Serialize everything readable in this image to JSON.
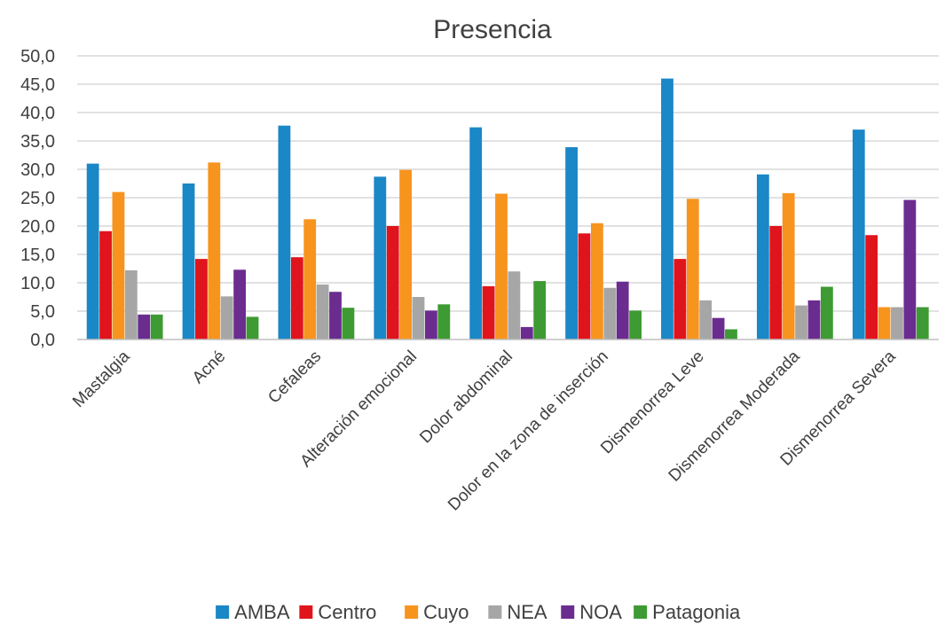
{
  "chart_data": {
    "type": "bar",
    "title": "Presencia",
    "xlabel": "",
    "ylabel": "",
    "ylim": [
      0,
      50
    ],
    "yticks": [
      "0,0",
      "5,0",
      "10,0",
      "15,0",
      "20,0",
      "25,0",
      "30,0",
      "35,0",
      "40,0",
      "45,0",
      "50,0"
    ],
    "grid": true,
    "legend_position": "bottom",
    "categories": [
      "Mastalgia",
      "Acné",
      "Cefaleas",
      "Alteración emocional",
      "Dolor abdominal",
      "Dolor en la zona de inserción",
      "Dismenorrea Leve",
      "Dismenorrea Moderada",
      "Dismenorrea Severa"
    ],
    "series": [
      {
        "name": "AMBA",
        "color": "#1A87C6",
        "values": [
          31.0,
          27.5,
          37.7,
          28.7,
          37.4,
          33.9,
          46.0,
          29.1,
          37.0
        ]
      },
      {
        "name": "Centro",
        "color": "#E0141C",
        "values": [
          19.1,
          14.2,
          14.5,
          20.0,
          9.4,
          18.7,
          14.2,
          20.0,
          18.4
        ]
      },
      {
        "name": "Cuyo",
        "color": "#F7941D",
        "values": [
          26.0,
          31.2,
          21.2,
          29.9,
          25.7,
          20.5,
          24.8,
          25.8,
          5.7
        ]
      },
      {
        "name": "NEA",
        "color": "#A6A6A6",
        "values": [
          12.2,
          7.6,
          9.7,
          7.5,
          12.0,
          9.1,
          6.9,
          6.0,
          5.7
        ]
      },
      {
        "name": "NOA",
        "color": "#6B2C8F",
        "values": [
          4.4,
          12.3,
          8.4,
          5.1,
          2.2,
          10.2,
          3.8,
          6.9,
          24.6
        ]
      },
      {
        "name": "Patagonia",
        "color": "#3E9A33",
        "values": [
          4.4,
          4.0,
          5.6,
          6.2,
          10.3,
          5.1,
          1.8,
          9.3,
          5.7
        ]
      }
    ]
  }
}
